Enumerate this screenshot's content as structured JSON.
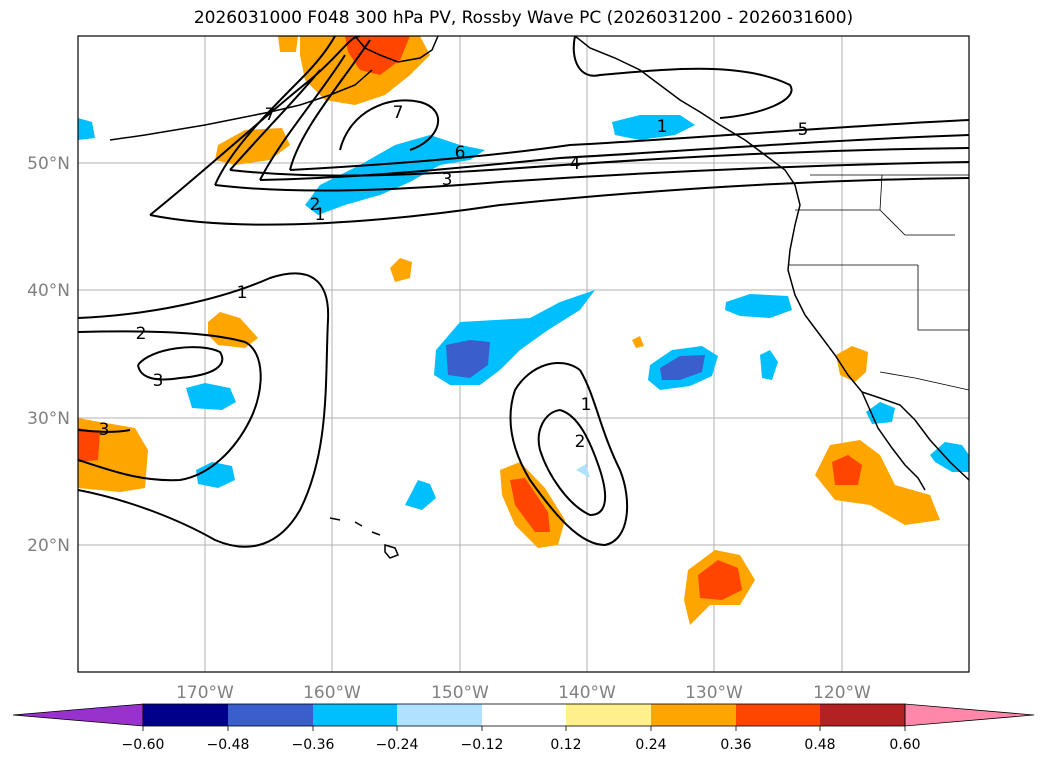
{
  "title": "2026031000 F048 300 hPa PV, Rossby Wave PC (2026031200 - 2026031600)",
  "colors": {
    "gridline": "#b0b0b0",
    "contour": "#000000",
    "coastline": "#000000",
    "axis_label": "#808080"
  },
  "map": {
    "lat_ticks": [
      "20°N",
      "30°N",
      "40°N",
      "50°N"
    ],
    "lon_ticks": [
      "170°W",
      "160°W",
      "150°W",
      "140°W",
      "130°W",
      "120°W"
    ]
  },
  "contour_labels": [
    "1",
    "2",
    "3",
    "4",
    "5",
    "6",
    "7",
    "7",
    "1",
    "2",
    "3",
    "3",
    "1",
    "2",
    "1"
  ],
  "colorbar": {
    "bins": [
      {
        "color": "#9932cc"
      },
      {
        "color": "#00008b"
      },
      {
        "color": "#3a5fcd"
      },
      {
        "color": "#00bfff"
      },
      {
        "color": "#b0e2ff"
      },
      {
        "color": "#ffffff"
      },
      {
        "color": "#fff08c"
      },
      {
        "color": "#ffa500"
      },
      {
        "color": "#ff4500"
      },
      {
        "color": "#b22222"
      },
      {
        "color": "#ff88aa"
      }
    ],
    "tick_labels": [
      "−0.60",
      "−0.48",
      "−0.36",
      "−0.24",
      "−0.12",
      "0.12",
      "0.24",
      "0.36",
      "0.48",
      "0.60"
    ]
  }
}
